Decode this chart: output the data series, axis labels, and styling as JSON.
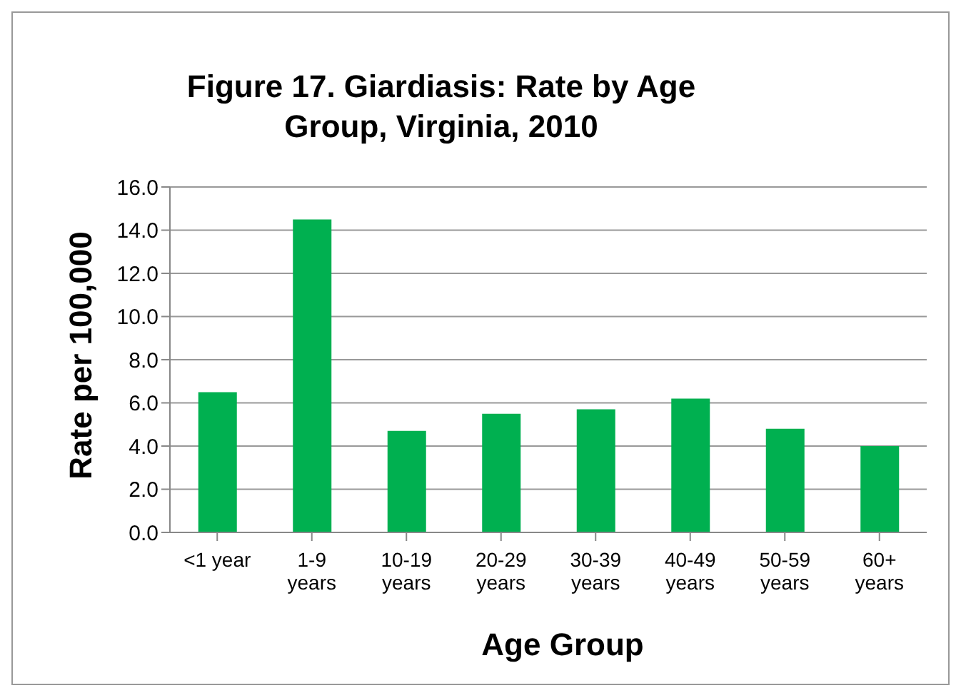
{
  "chart_data": {
    "type": "bar",
    "title": "Figure 17. Giardiasis: Rate by Age Group, Virginia, 2010",
    "xlabel": "Age Group",
    "ylabel": "Rate per 100,000",
    "categories": [
      "<1 year",
      "1-9 years",
      "10-19 years",
      "20-29 years",
      "30-39 years",
      "40-49 years",
      "50-59 years",
      "60+ years"
    ],
    "values": [
      6.5,
      14.5,
      4.7,
      5.5,
      5.7,
      6.2,
      4.8,
      4.0
    ],
    "color": "#00b050",
    "ylim": [
      0,
      16
    ],
    "yticks": [
      {
        "value": 0,
        "label": "0.0"
      },
      {
        "value": 2,
        "label": "2.0"
      },
      {
        "value": 4,
        "label": "4.0"
      },
      {
        "value": 6,
        "label": "6.0"
      },
      {
        "value": 8,
        "label": "8.0"
      },
      {
        "value": 10,
        "label": "10.0"
      },
      {
        "value": 12,
        "label": "12.0"
      },
      {
        "value": 14,
        "label": "14.0"
      },
      {
        "value": 16,
        "label": "16.0"
      }
    ],
    "grid": "y",
    "legend": false
  }
}
